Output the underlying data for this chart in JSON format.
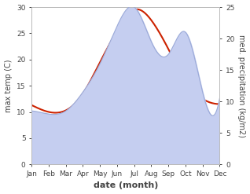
{
  "months": [
    "Jan",
    "Feb",
    "Mar",
    "Apr",
    "May",
    "Jun",
    "Jul",
    "Aug",
    "Sep",
    "Oct",
    "Nov",
    "Dec"
  ],
  "temp_C": [
    11.3,
    10.0,
    10.3,
    13.5,
    19.5,
    25.5,
    29.5,
    27.5,
    22.0,
    16.0,
    12.5,
    11.5
  ],
  "precip_mm": [
    8.5,
    8.0,
    8.5,
    11.5,
    16.0,
    22.0,
    25.0,
    19.5,
    17.5,
    21.0,
    11.5,
    10.5
  ],
  "temp_color": "#cc2200",
  "precip_fill_color": "#c5cef0",
  "precip_line_color": "#9baad8",
  "left_ylim": [
    0,
    30
  ],
  "right_ylim": [
    0,
    25
  ],
  "left_yticks": [
    0,
    5,
    10,
    15,
    20,
    25,
    30
  ],
  "right_yticks": [
    0,
    5,
    10,
    15,
    20,
    25
  ],
  "ylabel_left": "max temp (C)",
  "ylabel_right": "med. precipitation (kg/m2)",
  "xlabel": "date (month)",
  "bg_color": "#ffffff",
  "spine_color": "#bbbbbb",
  "tick_color": "#444444",
  "label_fontsize": 7,
  "tick_fontsize": 6.5,
  "xlabel_fontsize": 8,
  "xlabel_fontweight": "bold"
}
